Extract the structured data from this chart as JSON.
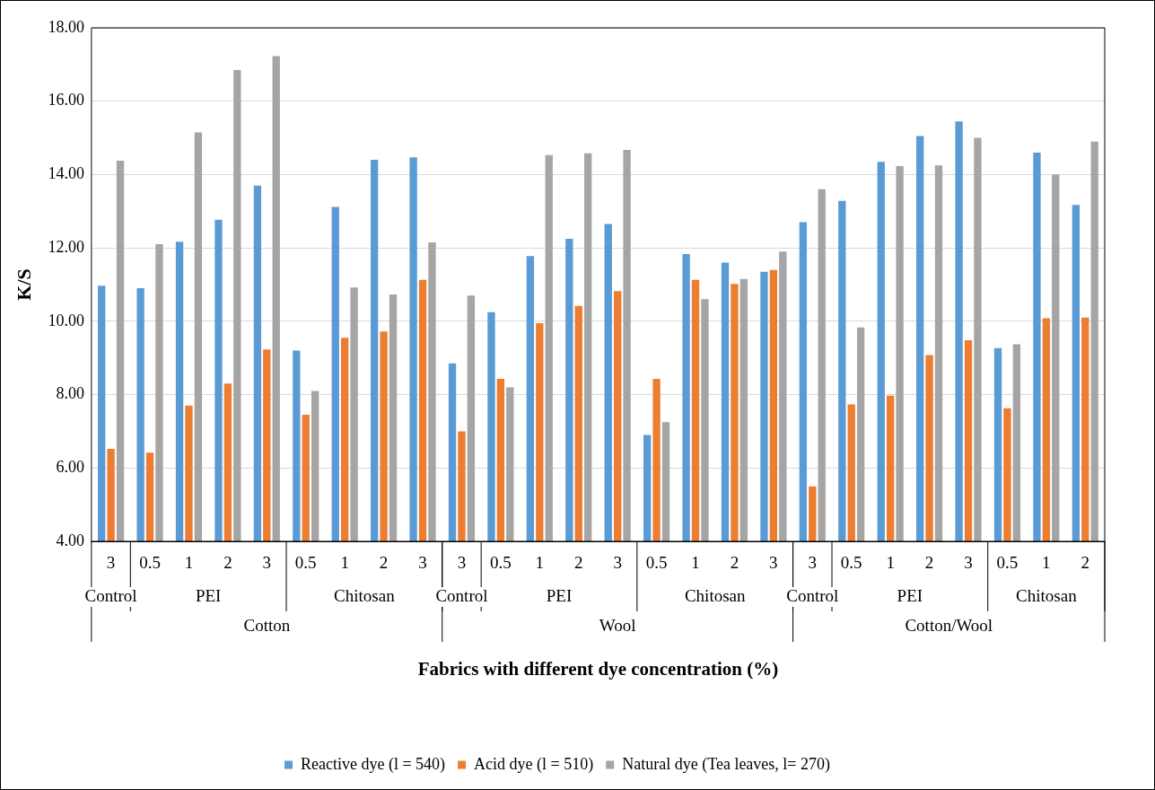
{
  "chart_data": {
    "type": "bar",
    "xlabel": "Fabrics with different dye concentration (%)",
    "ylabel": "K/S",
    "categories": [
      "3",
      "0.5",
      "1",
      "2",
      "3",
      "0.5",
      "1",
      "2",
      "3",
      "3",
      "0.5",
      "1",
      "2",
      "3",
      "0.5",
      "1",
      "2",
      "3",
      "3",
      "0.5",
      "1",
      "2",
      "3",
      "0.5",
      "1",
      "2"
    ],
    "annotations": [
      "Control",
      "PEI",
      "Chitosan",
      "Control",
      "PEI",
      "Chitosan",
      "Control",
      "PEI",
      "Chitosan",
      "Cotton",
      "Wool",
      "Cotton/Wool"
    ],
    "series": [
      {
        "name": "Reactive dye (l = 540)",
        "color": "#5b9bd5",
        "values": [
          10.97,
          10.9,
          12.17,
          12.77,
          13.7,
          9.2,
          13.12,
          14.4,
          14.47,
          8.85,
          10.25,
          11.78,
          12.25,
          12.65,
          6.9,
          11.83,
          11.6,
          11.35,
          12.7,
          13.28,
          14.35,
          15.05,
          15.45,
          9.27,
          14.6,
          13.17
        ]
      },
      {
        "name": "Acid dye (l = 510)",
        "color": "#ed7d31",
        "values": [
          6.52,
          6.42,
          7.7,
          8.3,
          9.23,
          7.45,
          9.55,
          9.72,
          11.13,
          7.0,
          8.43,
          9.95,
          10.42,
          10.82,
          8.43,
          11.13,
          11.02,
          11.4,
          5.5,
          7.73,
          7.97,
          9.08,
          9.48,
          7.63,
          10.08,
          10.1
        ]
      },
      {
        "name": "Natural dye (Tea leaves, l= 270)",
        "color": "#a5a5a5",
        "values": [
          14.38,
          12.1,
          15.15,
          16.85,
          17.23,
          8.1,
          10.92,
          10.73,
          12.15,
          10.7,
          8.2,
          14.53,
          14.58,
          14.67,
          7.25,
          10.6,
          11.15,
          11.9,
          13.6,
          9.83,
          14.23,
          14.25,
          15.0,
          9.37,
          14.0,
          14.9
        ]
      }
    ],
    "ylim": [
      4,
      18
    ],
    "yticks": [
      {
        "value": 4,
        "label": "4.00"
      },
      {
        "value": 6,
        "label": "6.00"
      },
      {
        "value": 8,
        "label": "8.00"
      },
      {
        "value": 10,
        "label": "10.00"
      },
      {
        "value": 12,
        "label": "12.00"
      },
      {
        "value": 14,
        "label": "14.00"
      },
      {
        "value": 16,
        "label": "16.00"
      },
      {
        "value": 18,
        "label": "18.00"
      }
    ],
    "grid": "y",
    "legend": "bottom"
  }
}
